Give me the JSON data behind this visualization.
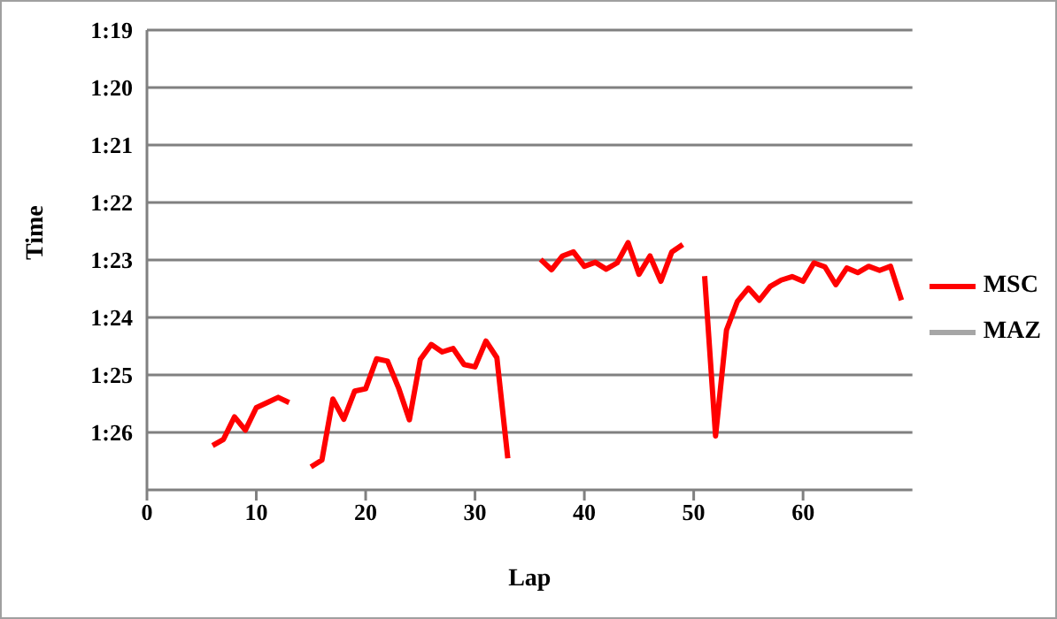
{
  "chart_data": {
    "type": "line",
    "xlabel": "Lap",
    "ylabel": "Time",
    "x": [
      6,
      7,
      8,
      9,
      10,
      11,
      12,
      13,
      14,
      15,
      16,
      17,
      18,
      19,
      20,
      21,
      22,
      23,
      24,
      25,
      26,
      27,
      28,
      29,
      30,
      31,
      32,
      33,
      34,
      35,
      36,
      37,
      38,
      39,
      40,
      41,
      42,
      43,
      44,
      45,
      46,
      47,
      48,
      49,
      50,
      51,
      52,
      53,
      54,
      55,
      56,
      57,
      58,
      59,
      60,
      61,
      62,
      63,
      64,
      65,
      66,
      67,
      68,
      69
    ],
    "series": [
      {
        "name": "MSC",
        "color": "#ff0000",
        "values": [
          86.23,
          86.12,
          85.73,
          85.96,
          85.57,
          85.48,
          85.39,
          85.48,
          null,
          86.6,
          86.48,
          85.42,
          85.77,
          85.28,
          85.24,
          84.72,
          84.76,
          85.22,
          85.78,
          84.73,
          84.47,
          84.6,
          84.54,
          84.82,
          84.86,
          84.41,
          84.7,
          86.45,
          null,
          null,
          82.99,
          83.17,
          82.93,
          82.86,
          83.11,
          83.04,
          83.16,
          83.05,
          82.7,
          83.25,
          82.93,
          83.37,
          82.86,
          82.73,
          null,
          83.28,
          86.06,
          84.22,
          83.72,
          83.49,
          83.7,
          83.46,
          83.35,
          83.29,
          83.37,
          83.05,
          83.12,
          83.43,
          83.14,
          83.22,
          83.11,
          83.18,
          83.11,
          83.7
        ]
      },
      {
        "name": "MAZ",
        "color": "#a6a6a6",
        "values": [
          null,
          null,
          null,
          null,
          null,
          null,
          null,
          null,
          null,
          null,
          null,
          null,
          null,
          null,
          null,
          null,
          null,
          null,
          null,
          null,
          null,
          null,
          null,
          null,
          null,
          null,
          null,
          null,
          null,
          null,
          null,
          null,
          null,
          null,
          null,
          null,
          null,
          null,
          null,
          null,
          null,
          null,
          null,
          null,
          null,
          null,
          null,
          null,
          null,
          null,
          null,
          null,
          null,
          null,
          null,
          null,
          null,
          null,
          null,
          null,
          null,
          null,
          null,
          null
        ]
      }
    ],
    "xlim": [
      0,
      70
    ],
    "xticks": [
      0,
      10,
      20,
      30,
      40,
      50,
      60
    ],
    "ylim": [
      87,
      79
    ],
    "yticks": [
      {
        "value": 79,
        "label": "1:19"
      },
      {
        "value": 80,
        "label": "1:20"
      },
      {
        "value": 81,
        "label": "1:21"
      },
      {
        "value": 82,
        "label": "1:22"
      },
      {
        "value": 83,
        "label": "1:23"
      },
      {
        "value": 84,
        "label": "1:24"
      },
      {
        "value": 85,
        "label": "1:25"
      },
      {
        "value": 86,
        "label": "1:26"
      }
    ],
    "grid": "y",
    "legend": "right",
    "marker": "none",
    "line_style": "solid"
  }
}
